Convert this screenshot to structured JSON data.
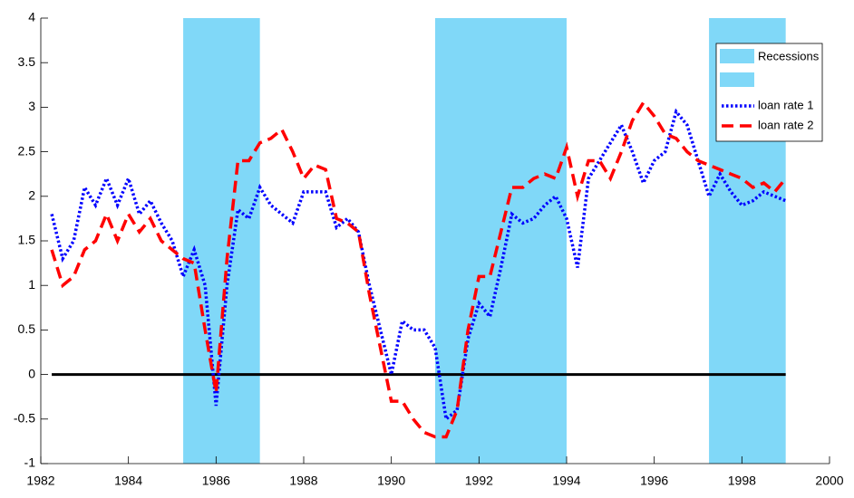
{
  "chart_data": {
    "type": "line",
    "x": [
      1982.25,
      1982.5,
      1982.75,
      1983,
      1983.25,
      1983.5,
      1983.75,
      1984,
      1984.25,
      1984.5,
      1984.75,
      1985,
      1985.25,
      1985.5,
      1985.75,
      1986,
      1986.25,
      1986.5,
      1986.75,
      1987,
      1987.25,
      1987.5,
      1987.75,
      1988,
      1988.25,
      1988.5,
      1988.75,
      1989,
      1989.25,
      1989.5,
      1989.75,
      1990,
      1990.25,
      1990.5,
      1990.75,
      1991,
      1991.25,
      1991.5,
      1991.75,
      1992,
      1992.25,
      1992.5,
      1992.75,
      1993,
      1993.25,
      1993.5,
      1993.75,
      1994,
      1994.25,
      1994.5,
      1994.75,
      1995,
      1995.25,
      1995.5,
      1995.75,
      1996,
      1996.25,
      1996.5,
      1996.75,
      1997,
      1997.25,
      1997.5,
      1997.75,
      1998,
      1998.25,
      1998.5,
      1998.75,
      1999
    ],
    "series": [
      {
        "name": "loan rate 1",
        "color": "#0000ff",
        "style": "dotted",
        "values": [
          1.8,
          1.3,
          1.5,
          2.1,
          1.9,
          2.2,
          1.9,
          2.2,
          1.8,
          1.95,
          1.7,
          1.5,
          1.1,
          1.4,
          1.0,
          -0.35,
          1.0,
          1.85,
          1.75,
          2.1,
          1.9,
          1.8,
          1.7,
          2.05,
          2.05,
          2.05,
          1.65,
          1.75,
          1.6,
          1.0,
          0.5,
          0.0,
          0.6,
          0.5,
          0.5,
          0.3,
          -0.5,
          -0.4,
          0.4,
          0.8,
          0.65,
          1.2,
          1.8,
          1.7,
          1.75,
          1.9,
          2.0,
          1.75,
          1.2,
          2.2,
          2.4,
          2.6,
          2.8,
          2.5,
          2.15,
          2.4,
          2.5,
          2.95,
          2.8,
          2.4,
          2.0,
          2.25,
          2.05,
          1.9,
          1.95,
          2.05,
          2.0,
          1.95
        ]
      },
      {
        "name": "loan rate 2",
        "color": "#ff0000",
        "style": "dashed",
        "values": [
          1.4,
          1.0,
          1.1,
          1.4,
          1.5,
          1.8,
          1.5,
          1.8,
          1.6,
          1.75,
          1.5,
          1.4,
          1.3,
          1.25,
          0.5,
          -0.2,
          1.3,
          2.4,
          2.4,
          2.6,
          2.65,
          2.75,
          2.5,
          2.2,
          2.35,
          2.3,
          1.75,
          1.7,
          1.6,
          0.9,
          0.3,
          -0.3,
          -0.3,
          -0.5,
          -0.65,
          -0.7,
          -0.7,
          -0.4,
          0.5,
          1.1,
          1.1,
          1.6,
          2.1,
          2.1,
          2.2,
          2.25,
          2.2,
          2.55,
          2.0,
          2.4,
          2.4,
          2.2,
          2.5,
          2.85,
          3.05,
          2.9,
          2.7,
          2.65,
          2.5,
          2.4,
          2.35,
          2.3,
          2.25,
          2.2,
          2.1,
          2.15,
          2.05,
          2.2
        ]
      }
    ],
    "recessions": {
      "name": "Recessions",
      "color": "#80d8f8",
      "spans": [
        [
          1985.25,
          1987
        ],
        [
          1991,
          1994
        ],
        [
          1997.25,
          1999
        ]
      ]
    },
    "hline": 0,
    "xlim": [
      1982,
      2000
    ],
    "xticks": [
      1982,
      1984,
      1986,
      1988,
      1990,
      1992,
      1994,
      1996,
      1998,
      2000
    ],
    "ylim": [
      -1,
      4
    ],
    "yticks": [
      -1,
      -0.5,
      0,
      0.5,
      1,
      1.5,
      2,
      2.5,
      3,
      3.5,
      4
    ]
  }
}
